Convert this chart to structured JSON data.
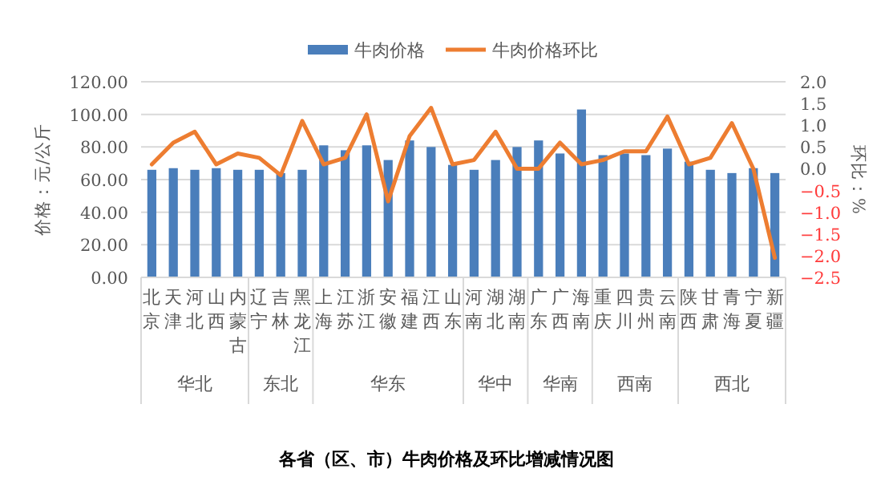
{
  "chart_data": {
    "type": "bar",
    "title": "各省（区、市）牛肉价格及环比增减情况图",
    "ylabel": "价格：元/公斤",
    "y2label": "环比：%",
    "categories": [
      "北京",
      "天津",
      "河北",
      "山西",
      "内蒙古",
      "辽宁",
      "吉林",
      "黑龙江",
      "上海",
      "江苏",
      "浙江",
      "安徽",
      "福建",
      "江西",
      "山东",
      "河南",
      "湖北",
      "湖南",
      "广东",
      "广西",
      "海南",
      "重庆",
      "四川",
      "贵州",
      "云南",
      "陕西",
      "甘肃",
      "青海",
      "宁夏",
      "新疆"
    ],
    "series": [
      {
        "name": "牛肉价格",
        "color": "#4a7ebb",
        "values": [
          66,
          67,
          66,
          67,
          66,
          66,
          64,
          66,
          81,
          78,
          81,
          72,
          84,
          80,
          69,
          66,
          72,
          80,
          84,
          76,
          103,
          75,
          76,
          75,
          79,
          71,
          66,
          64,
          67,
          64
        ]
      },
      {
        "name": "牛肉价格环比",
        "type": "line",
        "axis": "y2",
        "color": "#ed7d31",
        "values": [
          0.1,
          0.6,
          0.85,
          0.1,
          0.35,
          0.25,
          -0.15,
          1.1,
          0.1,
          0.25,
          1.25,
          -0.75,
          0.75,
          1.4,
          0.1,
          0.2,
          0.85,
          0.0,
          0.0,
          0.6,
          0.1,
          0.2,
          0.4,
          0.4,
          1.2,
          0.1,
          0.25,
          1.05,
          0.0,
          -2.05
        ]
      }
    ],
    "ylim": [
      0,
      120
    ],
    "yticks": [
      {
        "value": 0,
        "label": "0.00"
      },
      {
        "value": 20,
        "label": "20.00"
      },
      {
        "value": 40,
        "label": "40.00"
      },
      {
        "value": 60,
        "label": "60.00"
      },
      {
        "value": 80,
        "label": "80.00"
      },
      {
        "value": 100,
        "label": "100.00"
      },
      {
        "value": 120,
        "label": "120.00"
      }
    ],
    "y2lim": [
      -2.5,
      2.0
    ],
    "y2ticks": [
      {
        "value": -2.5,
        "label": "−2.5"
      },
      {
        "value": -2,
        "label": "−2.0"
      },
      {
        "value": -1.5,
        "label": "−1.5"
      },
      {
        "value": -1,
        "label": "−1.0"
      },
      {
        "value": -0.5,
        "label": "−0.5"
      },
      {
        "value": 0,
        "label": "0.0"
      },
      {
        "value": 0.5,
        "label": "0.5"
      },
      {
        "value": 1,
        "label": "1.0"
      },
      {
        "value": 1.5,
        "label": "1.5"
      },
      {
        "value": 2,
        "label": "2.0"
      }
    ],
    "grid": "y",
    "legend": "top",
    "marker": "none",
    "line_style": "solid",
    "annotations": [
      "华北",
      "东北",
      "华东",
      "华中",
      "华南",
      "西南",
      "西北"
    ]
  }
}
